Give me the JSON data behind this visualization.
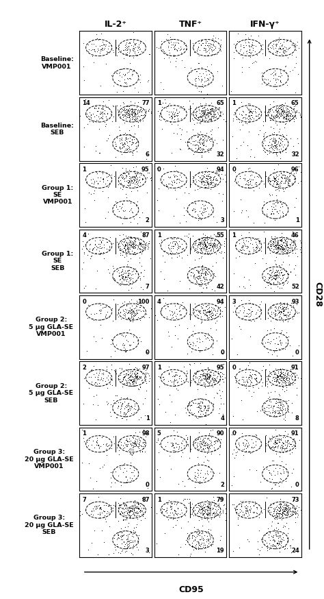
{
  "col_headers": [
    "IL-2⁺",
    "TNF⁺",
    "IFN-γ⁺"
  ],
  "row_labels": [
    "Baseline:\nVMP001",
    "Baseline:\nSEB",
    "Group 1:\nSE\nVMP001",
    "Group 1:\nSE\nSEB",
    "Group 2:\n5 μg GLA-SE\nVMP001",
    "Group 2:\n5 μg GLA-SE\nSEB",
    "Group 3:\n20 μg GLA-SE\nVMP001",
    "Group 3:\n20 μg GLA-SE\nSEB"
  ],
  "quadrant_values": [
    [
      [
        "",
        "",
        ""
      ],
      [
        "14",
        "77",
        "6"
      ],
      [
        "1",
        "95",
        "2"
      ],
      [
        "4",
        "87",
        "7"
      ],
      [
        "0",
        "100",
        "0"
      ],
      [
        "2",
        "97",
        "1"
      ],
      [
        "1",
        "98",
        "0"
      ],
      [
        "7",
        "87",
        "3"
      ]
    ],
    [
      [
        "",
        "",
        ""
      ],
      [
        "1",
        "65",
        "32"
      ],
      [
        "0",
        "94",
        "3"
      ],
      [
        "1",
        "55",
        "42"
      ],
      [
        "4",
        "94",
        "0"
      ],
      [
        "1",
        "95",
        "4"
      ],
      [
        "5",
        "90",
        "2"
      ],
      [
        "1",
        "79",
        "19"
      ]
    ],
    [
      [
        "",
        "",
        ""
      ],
      [
        "1",
        "65",
        "32"
      ],
      [
        "0",
        "96",
        "1"
      ],
      [
        "1",
        "46",
        "52"
      ],
      [
        "3",
        "93",
        "0"
      ],
      [
        "0",
        "91",
        "8"
      ],
      [
        "0",
        "91",
        "0"
      ],
      [
        "",
        "73",
        "24"
      ]
    ]
  ],
  "xlabel": "CD95",
  "ylabel": "CD28",
  "background_color": "#ffffff"
}
